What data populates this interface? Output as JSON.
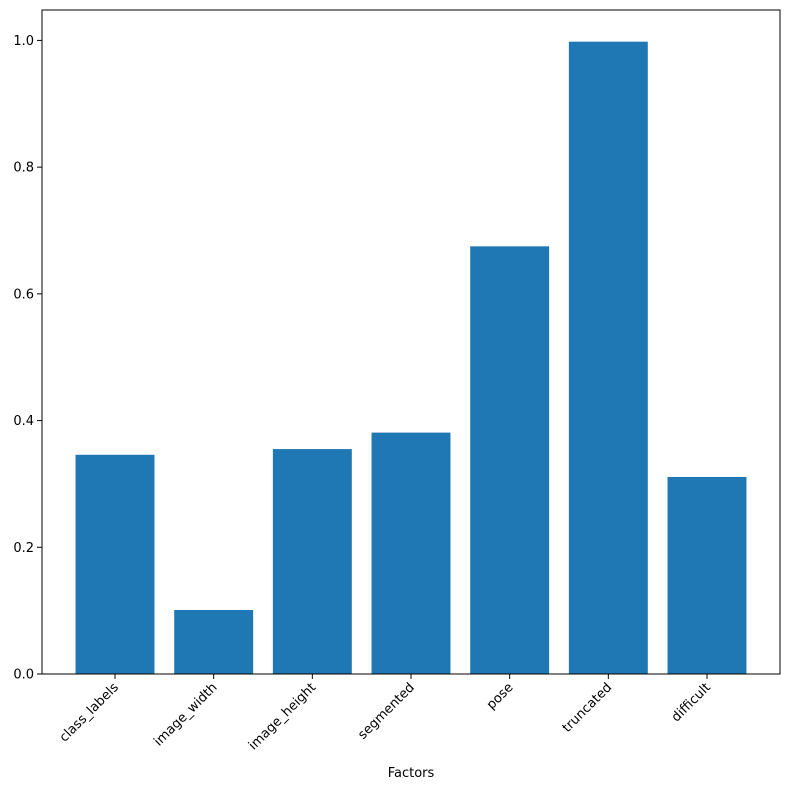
{
  "chart_data": {
    "type": "bar",
    "xlabel": "Factors",
    "categories": [
      "class_labels",
      "image_width",
      "image_height",
      "segmented",
      "pose",
      "truncated",
      "difficult"
    ],
    "values": [
      0.346,
      0.101,
      0.355,
      0.381,
      0.675,
      0.998,
      0.311
    ],
    "color": "#1f77b4",
    "ylim": [
      0,
      1.048
    ],
    "yticks": [
      {
        "value": 0,
        "label": "0.0"
      },
      {
        "value": 0.2,
        "label": "0.2"
      },
      {
        "value": 0.4,
        "label": "0.4"
      },
      {
        "value": 0.6,
        "label": "0.6"
      },
      {
        "value": 0.8,
        "label": "0.8"
      },
      {
        "value": 1.0,
        "label": "1.0"
      }
    ]
  }
}
